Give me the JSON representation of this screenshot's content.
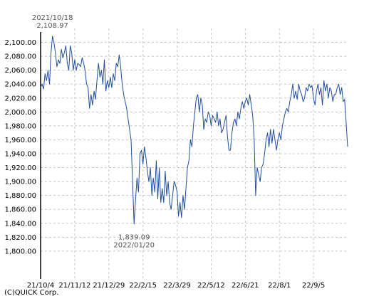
{
  "chart_data": {
    "type": "line",
    "ylim": [
      1760,
      2120
    ],
    "ticks_y": [
      1800,
      1820,
      1840,
      1860,
      1880,
      1900,
      1920,
      1940,
      1960,
      1980,
      2000,
      2020,
      2040,
      2060,
      2080,
      2100
    ],
    "tick_labels_y": [
      "1,800.00",
      "1,820.00",
      "1,840.00",
      "1,860.00",
      "1,880.00",
      "1,900.00",
      "1,920.00",
      "1,940.00",
      "1,960.00",
      "1,980.00",
      "2,000.00",
      "2,020.00",
      "2,040.00",
      "2,060.00",
      "2,080.00",
      "2,100.00"
    ],
    "tick_labels_x": [
      "21/10/4",
      "21/11/12",
      "21/12/29",
      "22/2/15",
      "22/3/29",
      "22/5/12",
      "22/6/21",
      "22/8/1",
      "22/9/5"
    ],
    "grid": true,
    "series": [
      {
        "color": "#1f4e9c",
        "values": [
          2035,
          2040,
          2033,
          2055,
          2045,
          2060,
          2040,
          2085,
          2108.97,
          2100,
          2085,
          2065,
          2075,
          2070,
          2090,
          2078,
          2085,
          2095,
          2070,
          2060,
          2095,
          2085,
          2060,
          2075,
          2060,
          2070,
          2068,
          2065,
          2078,
          2070,
          2060,
          2040,
          2035,
          2005,
          2025,
          2010,
          2030,
          2018,
          2045,
          2070,
          2050,
          2060,
          2040,
          2075,
          2030,
          2045,
          2035,
          2050,
          2035,
          2055,
          2045,
          2070,
          2065,
          2082,
          2065,
          2040,
          2025,
          2015,
          2005,
          1990,
          1975,
          1960,
          1900,
          1839.09,
          1875,
          1905,
          1885,
          1940,
          1945,
          1925,
          1950,
          1935,
          1915,
          1900,
          1920,
          1880,
          1905,
          1885,
          1930,
          1875,
          1920,
          1870,
          1890,
          1870,
          1915,
          1880,
          1900,
          1870,
          1860,
          1880,
          1900,
          1895,
          1885,
          1850,
          1870,
          1848,
          1880,
          1860,
          1890,
          1920,
          1930,
          1960,
          1950,
          1980,
          2000,
          2020,
          2025,
          2000,
          2020,
          2010,
          1975,
          1990,
          1985,
          2000,
          1995,
          1980,
          1995,
          1990,
          1985,
          2000,
          1980,
          1990,
          1970,
          1975,
          1985,
          1995,
          1965,
          1945,
          1945,
          1970,
          1985,
          1990,
          1980,
          2000,
          1990,
          2005,
          2015,
          2005,
          2015,
          2020,
          2010,
          2025,
          2010,
          1995,
          1960,
          1880,
          1920,
          1910,
          1900,
          1920,
          1925,
          1940,
          1960,
          1970,
          1950,
          1975,
          1955,
          1975,
          1960,
          1945,
          1960,
          1970,
          1960,
          1980,
          1990,
          2000,
          2005,
          2000,
          2015,
          2025,
          2040,
          2020,
          2030,
          2018,
          2040,
          2030,
          2025,
          2015,
          2020,
          2035,
          2030,
          2040,
          2035,
          2038,
          2020,
          2010,
          2030,
          2040,
          2025,
          2035,
          2010,
          2045,
          2030,
          2040,
          2020,
          2035,
          2030,
          2015,
          2025,
          2025,
          2035,
          2040,
          2025,
          2035,
          2015,
          2018,
          1985,
          1950
        ]
      }
    ],
    "annotations": [
      {
        "lines": [
          "2021/10/18",
          "2,108.97"
        ],
        "date": "2021/10/18",
        "value": 2108.97,
        "position": "above"
      },
      {
        "lines": [
          "1,839.09",
          "2022/01/20"
        ],
        "date": "2022/01/20",
        "value": 1839.09,
        "position": "below"
      }
    ]
  },
  "credit": "(C)QUICK Corp."
}
